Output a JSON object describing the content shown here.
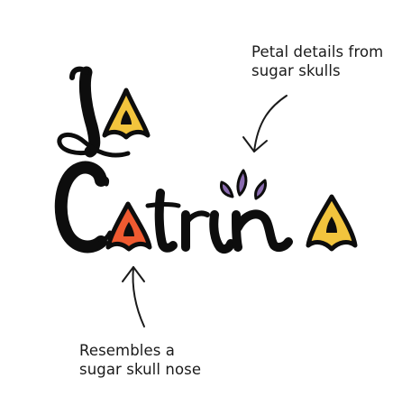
{
  "logo": {
    "wordmark": "La Catrina",
    "colors": {
      "ink": "#0d0d0d",
      "petal_yellow": "#f2c43d",
      "nose_orange": "#ef5a30",
      "petal_purple": "#8a6bb0"
    }
  },
  "annotations": {
    "petal": {
      "line1": "Petal details from",
      "line2": "sugar skulls"
    },
    "nose": {
      "line1": "Resembles a",
      "line2": "sugar skull nose"
    }
  },
  "icons": {
    "petal_arrow": "curved-arrow-down-left-icon",
    "nose_arrow": "curved-arrow-up-icon"
  }
}
